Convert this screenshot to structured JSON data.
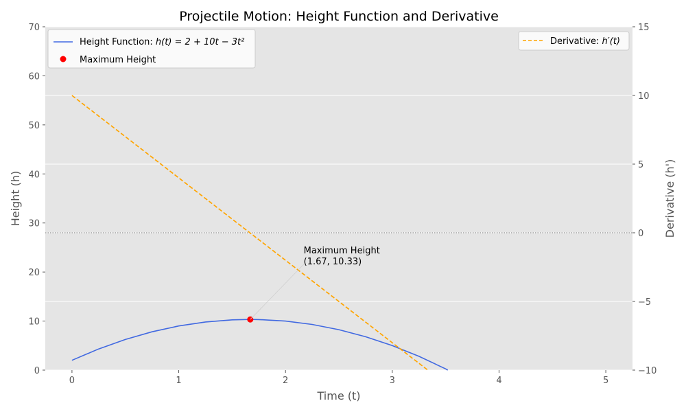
{
  "chart_data": {
    "type": "line",
    "title": "Projectile Motion: Height Function and Derivative",
    "xlabel": "Time (t)",
    "ylabel": "Height (h)",
    "y2label": "Derivative (h')",
    "xlim": [
      -0.25,
      5.25
    ],
    "ylim": [
      0,
      70
    ],
    "y2lim": [
      -10,
      15
    ],
    "xticks": [
      0,
      1,
      2,
      3,
      4,
      5
    ],
    "xtick_labels": [
      "0",
      "1",
      "2",
      "3",
      "4",
      "5"
    ],
    "yticks": [
      0,
      10,
      20,
      30,
      40,
      50,
      60,
      70
    ],
    "ytick_labels": [
      "0",
      "10",
      "20",
      "30",
      "40",
      "50",
      "60",
      "70"
    ],
    "y2ticks": [
      -10,
      -5,
      0,
      5,
      10,
      15
    ],
    "y2tick_labels": [
      "−10",
      "−5",
      "0",
      "5",
      "10",
      "15"
    ],
    "grid": true,
    "series": [
      {
        "name": "Height Function: h(t) = 2 + 10t − 3t²",
        "axis": "left",
        "style": "solid",
        "color": "#4169e1",
        "x": [
          0,
          0.25,
          0.5,
          0.75,
          1.0,
          1.25,
          1.5,
          1.667,
          1.75,
          2.0,
          2.25,
          2.5,
          2.75,
          3.0,
          3.25,
          3.5,
          3.52
        ],
        "y": [
          2.0,
          4.31,
          6.25,
          7.81,
          9.0,
          9.81,
          10.25,
          10.33,
          10.31,
          10.0,
          9.31,
          8.25,
          6.81,
          5.0,
          2.81,
          0.25,
          0.0
        ]
      },
      {
        "name": "Derivative: h′(t)",
        "axis": "right",
        "style": "dashed",
        "color": "#ffa500",
        "x": [
          0,
          3.333
        ],
        "y": [
          10,
          -10
        ]
      }
    ],
    "points": [
      {
        "name": "Maximum Height",
        "x": 1.67,
        "y": 10.33,
        "color": "#ff0000"
      }
    ],
    "reference_lines": [
      {
        "axis": "right",
        "y": 0,
        "style": "dotted",
        "color": "#888888"
      }
    ],
    "annotations": [
      {
        "text_lines": [
          "Maximum Height",
          "(1.67, 10.33)"
        ],
        "x": 2.17,
        "y": 21,
        "arrow_to": [
          1.67,
          10.33
        ]
      }
    ],
    "legend_left": {
      "placement": "top-left",
      "entries": [
        {
          "label": "Height Function: ",
          "math": "h(t) = 2 + 10t − 3t²",
          "marker": "line",
          "color": "#4169e1"
        },
        {
          "label": "Maximum Height",
          "math": "",
          "marker": "dot",
          "color": "#ff0000"
        }
      ]
    },
    "legend_right": {
      "placement": "top-right",
      "entries": [
        {
          "label": "Derivative: ",
          "math": "h′(t)",
          "marker": "dashed-line",
          "color": "#ffa500"
        }
      ]
    }
  }
}
